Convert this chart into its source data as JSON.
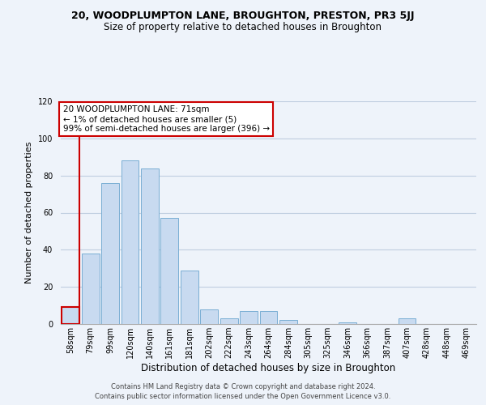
{
  "title": "20, WOODPLUMPTON LANE, BROUGHTON, PRESTON, PR3 5JJ",
  "subtitle": "Size of property relative to detached houses in Broughton",
  "xlabel": "Distribution of detached houses by size in Broughton",
  "ylabel": "Number of detached properties",
  "bar_values": [
    9,
    38,
    76,
    88,
    84,
    57,
    29,
    8,
    3,
    7,
    7,
    2,
    0,
    0,
    1,
    0,
    0,
    3,
    0,
    0,
    0
  ],
  "bar_labels": [
    "58sqm",
    "79sqm",
    "99sqm",
    "120sqm",
    "140sqm",
    "161sqm",
    "181sqm",
    "202sqm",
    "222sqm",
    "243sqm",
    "264sqm",
    "284sqm",
    "305sqm",
    "325sqm",
    "346sqm",
    "366sqm",
    "387sqm",
    "407sqm",
    "428sqm",
    "448sqm",
    "469sqm"
  ],
  "bar_color": "#c8daf0",
  "bar_edge_color": "#7aaed4",
  "highlight_edge_color": "#cc0000",
  "ylim": [
    0,
    120
  ],
  "yticks": [
    0,
    20,
    40,
    60,
    80,
    100,
    120
  ],
  "annotation_text": "20 WOODPLUMPTON LANE: 71sqm\n← 1% of detached houses are smaller (5)\n99% of semi-detached houses are larger (396) →",
  "annotation_box_color": "#ffffff",
  "annotation_box_edge": "#cc0000",
  "red_line_x": 0.43,
  "footer1": "Contains HM Land Registry data © Crown copyright and database right 2024.",
  "footer2": "Contains public sector information licensed under the Open Government Licence v3.0.",
  "bg_color": "#eef3fa",
  "plot_bg_color": "#eef3fa",
  "title_fontsize": 9,
  "subtitle_fontsize": 8.5,
  "ylabel_fontsize": 8,
  "xlabel_fontsize": 8.5,
  "tick_fontsize": 7,
  "ann_fontsize": 7.5,
  "footer_fontsize": 6
}
